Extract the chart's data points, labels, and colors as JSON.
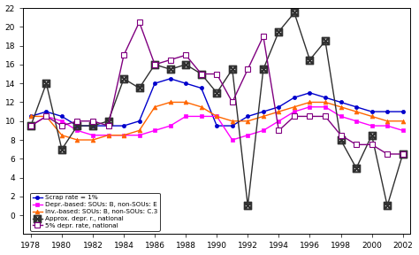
{
  "years": [
    1978,
    1979,
    1980,
    1981,
    1982,
    1983,
    1984,
    1985,
    1986,
    1987,
    1988,
    1989,
    1990,
    1991,
    1992,
    1993,
    1994,
    1995,
    1996,
    1997,
    1998,
    1999,
    2000,
    2001,
    2002
  ],
  "scrap_rate": [
    10.5,
    11.0,
    10.5,
    9.5,
    9.5,
    9.5,
    9.5,
    10.0,
    14.0,
    14.5,
    14.0,
    13.5,
    9.5,
    9.5,
    10.5,
    11.0,
    11.5,
    12.5,
    13.0,
    12.5,
    12.0,
    11.5,
    11.0,
    11.0,
    11.0
  ],
  "depr_based": [
    9.5,
    10.5,
    10.0,
    9.0,
    8.5,
    8.5,
    8.5,
    8.5,
    9.0,
    9.5,
    10.5,
    10.5,
    10.5,
    8.0,
    8.5,
    9.0,
    10.0,
    11.0,
    11.5,
    11.5,
    10.5,
    10.0,
    9.5,
    9.5,
    9.0
  ],
  "inv_based": [
    10.5,
    10.5,
    8.5,
    8.0,
    8.0,
    8.5,
    8.5,
    9.0,
    11.5,
    12.0,
    12.0,
    11.5,
    10.5,
    10.0,
    10.0,
    10.5,
    11.0,
    11.5,
    12.0,
    12.0,
    11.5,
    11.0,
    10.5,
    10.0,
    10.0
  ],
  "approx_depr": [
    9.5,
    14.0,
    7.0,
    9.5,
    9.5,
    10.0,
    14.5,
    13.5,
    16.0,
    15.5,
    16.0,
    15.0,
    13.0,
    15.5,
    1.0,
    15.5,
    19.5,
    21.5,
    16.5,
    18.5,
    8.0,
    5.0,
    8.5,
    1.0,
    6.5
  ],
  "five_pct": [
    9.5,
    10.5,
    9.5,
    10.0,
    10.0,
    9.5,
    17.0,
    20.5,
    16.0,
    16.5,
    17.0,
    15.0,
    15.0,
    12.0,
    15.5,
    19.0,
    9.0,
    10.5,
    10.5,
    10.5,
    8.5,
    7.5,
    7.5,
    6.5,
    6.5
  ],
  "series_labels": [
    "Scrap rate = 1%",
    "Depr.-based: SOUs: B, non-SOUs: E",
    "Inv.-based: SOUs: B, non-SOUs: C.3",
    "Approx. depr. r., national",
    "5% depr. rate, national"
  ],
  "colors": [
    "#0000cc",
    "#ff00ff",
    "#ff6600",
    "#303030",
    "#800080"
  ],
  "xlim": [
    1977.5,
    2002.5
  ],
  "ylim": [
    -2,
    22
  ],
  "xticks": [
    1978,
    1980,
    1982,
    1984,
    1986,
    1988,
    1990,
    1992,
    1994,
    1996,
    1998,
    2000,
    2002
  ],
  "yticks": [
    0,
    2,
    4,
    6,
    8,
    10,
    12,
    14,
    16,
    18,
    20,
    22
  ],
  "figsize": [
    4.74,
    2.88
  ],
  "dpi": 100
}
